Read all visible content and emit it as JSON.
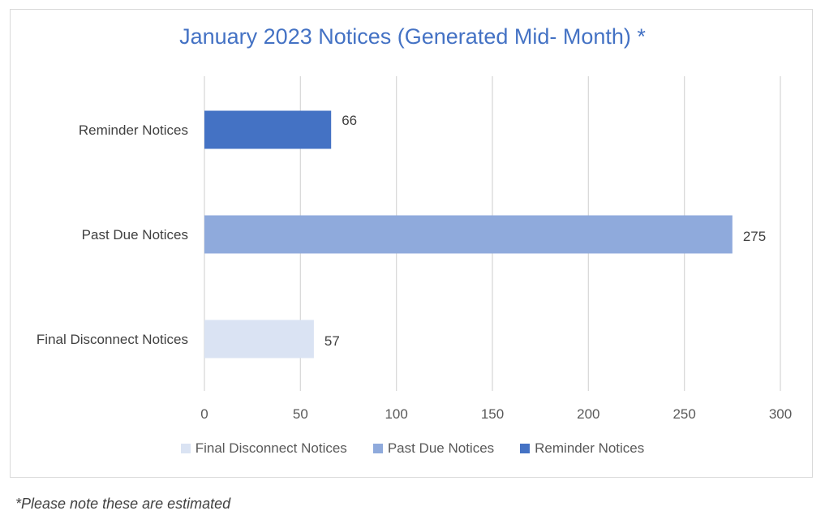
{
  "chart_data": {
    "type": "bar",
    "orientation": "horizontal",
    "title": "January 2023 Notices (Generated Mid- Month) *",
    "categories": [
      "Final Disconnect Notices",
      "Past Due Notices",
      "Reminder Notices"
    ],
    "values": [
      57,
      275,
      66
    ],
    "colors": [
      "#dae3f3",
      "#8faadc",
      "#4472c4"
    ],
    "xlim": [
      0,
      300
    ],
    "x_ticks": [
      0,
      50,
      100,
      150,
      200,
      250,
      300
    ],
    "grid": true,
    "data_labels": true,
    "legend": {
      "placement": "bottom",
      "entries": [
        "Final Disconnect Notices",
        "Past Due Notices",
        "Reminder Notices"
      ]
    }
  },
  "footnote": "*Please note these are estimated"
}
